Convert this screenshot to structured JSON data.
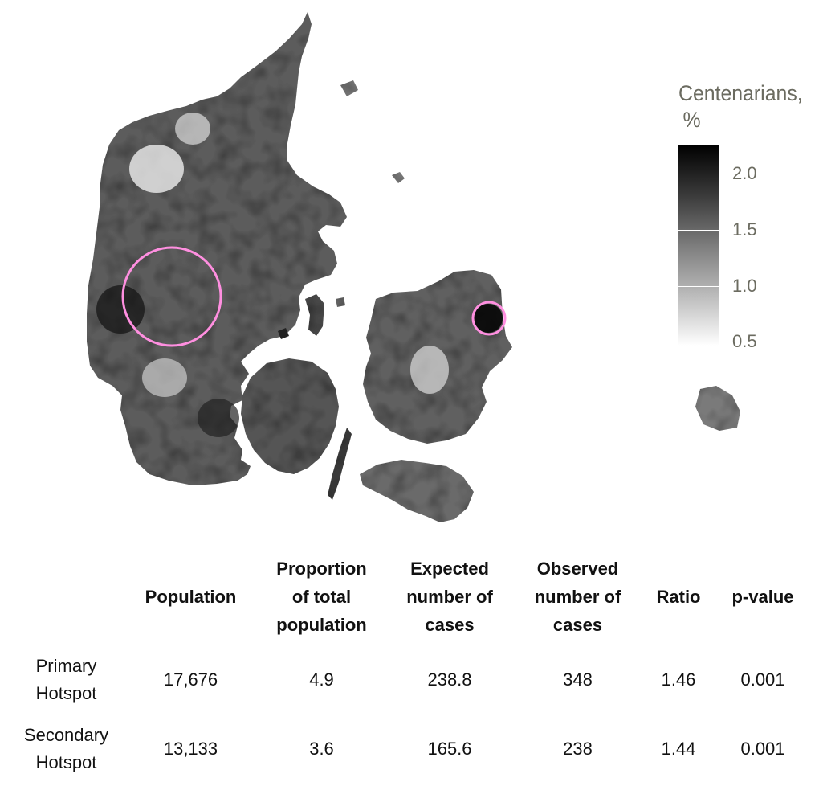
{
  "legend": {
    "title_line1": "Centenarians,",
    "title_line2": "%",
    "ticks": [
      "2.0",
      "1.5",
      "1.0",
      "0.5"
    ],
    "tick_values": [
      2.0,
      1.5,
      1.0,
      0.5
    ],
    "scale_min": 0.45,
    "scale_max": 2.25,
    "colormap": "white-to-black (grayscale)"
  },
  "map": {
    "region": "Denmark",
    "fill": "centenarian percentage by parish (grayscale)",
    "hotspot_circle_color": "#ff8fe0",
    "hotspots": [
      "Primary Hotspot",
      "Secondary Hotspot"
    ]
  },
  "table": {
    "headers": {
      "population": [
        "Population"
      ],
      "proportion": [
        "Proportion",
        "of total",
        "population"
      ],
      "expected": [
        "Expected",
        "number of",
        "cases"
      ],
      "observed": [
        "Observed",
        "number of",
        "cases"
      ],
      "ratio": [
        "Ratio"
      ],
      "pvalue": [
        "p-value"
      ]
    },
    "rows": [
      {
        "label": [
          "Primary",
          "Hotspot"
        ],
        "population": "17,676",
        "proportion": "4.9",
        "expected": "238.8",
        "observed": "348",
        "ratio": "1.46",
        "pvalue": "0.001"
      },
      {
        "label": [
          "Secondary",
          "Hotspot"
        ],
        "population": "13,133",
        "proportion": "3.6",
        "expected": "165.6",
        "observed": "238",
        "ratio": "1.44",
        "pvalue": "0.001"
      }
    ]
  }
}
